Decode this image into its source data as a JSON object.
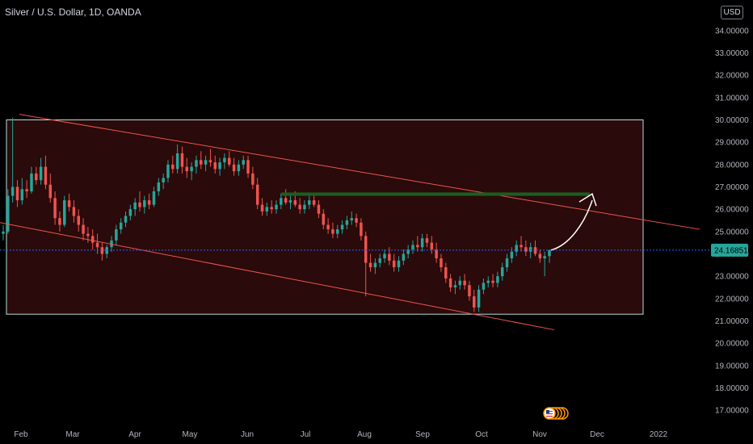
{
  "header": {
    "symbol": "Silver / U.S. Dollar, 1D, OANDA",
    "currency": "USD"
  },
  "colors": {
    "background": "#000000",
    "up": "#26a69a",
    "down": "#ef5350",
    "box_stroke": "#b2dfdb",
    "box_fill": "#2a0a0a",
    "channel": "#ef5350",
    "resistance": "#1b5e20",
    "projection": "#ffffff",
    "last_price_bg": "#26a69a",
    "last_price_line": "#2962ff"
  },
  "chart_data": {
    "type": "candlestick",
    "instrument": "Silver / U.S. Dollar",
    "timeframe": "1D",
    "source": "OANDA",
    "x_tick_labels": [
      "Feb",
      "Mar",
      "Apr",
      "May",
      "Jun",
      "Jul",
      "Aug",
      "Sep",
      "Oct",
      "Nov",
      "Dec",
      "2022"
    ],
    "y_tick_labels": [
      "34.00000",
      "33.00000",
      "32.00000",
      "31.00000",
      "30.00000",
      "29.00000",
      "28.00000",
      "27.00000",
      "26.00000",
      "25.00000",
      "24.00000",
      "23.00000",
      "22.00000",
      "21.00000",
      "20.00000",
      "19.00000",
      "18.00000",
      "17.00000"
    ],
    "y_range": [
      16.5,
      34.5
    ],
    "last_price": "24.16851",
    "last_price_value": 24.16851,
    "grid": false,
    "candles": [
      [
        24.9,
        25.3,
        24.6,
        25.0
      ],
      [
        25.0,
        26.9,
        24.9,
        26.6
      ],
      [
        26.6,
        30.1,
        26.3,
        27.0
      ],
      [
        27.0,
        27.3,
        26.1,
        26.4
      ],
      [
        26.4,
        27.4,
        26.2,
        26.9
      ],
      [
        26.9,
        27.3,
        26.5,
        26.8
      ],
      [
        26.8,
        27.9,
        26.7,
        27.6
      ],
      [
        27.6,
        27.9,
        27.1,
        27.3
      ],
      [
        27.3,
        28.3,
        27.1,
        27.9
      ],
      [
        27.9,
        28.4,
        26.9,
        27.1
      ],
      [
        27.1,
        27.6,
        26.3,
        26.5
      ],
      [
        26.5,
        26.8,
        25.3,
        25.6
      ],
      [
        25.6,
        25.9,
        25.0,
        25.3
      ],
      [
        25.3,
        26.6,
        25.2,
        26.4
      ],
      [
        26.4,
        26.7,
        25.9,
        26.1
      ],
      [
        26.1,
        26.4,
        25.4,
        25.7
      ],
      [
        25.7,
        26.0,
        25.0,
        25.3
      ],
      [
        25.3,
        25.6,
        24.6,
        24.9
      ],
      [
        24.9,
        25.2,
        24.5,
        24.8
      ],
      [
        24.8,
        25.1,
        24.2,
        24.5
      ],
      [
        24.5,
        24.9,
        24.0,
        24.3
      ],
      [
        24.3,
        24.5,
        23.7,
        24.0
      ],
      [
        24.0,
        24.4,
        23.8,
        24.3
      ],
      [
        24.3,
        24.8,
        24.1,
        24.6
      ],
      [
        24.6,
        25.3,
        24.4,
        25.1
      ],
      [
        25.1,
        25.6,
        24.9,
        25.4
      ],
      [
        25.4,
        25.9,
        25.2,
        25.7
      ],
      [
        25.7,
        26.2,
        25.5,
        26.0
      ],
      [
        26.0,
        26.5,
        25.7,
        26.3
      ],
      [
        26.3,
        26.8,
        25.9,
        26.1
      ],
      [
        26.1,
        26.6,
        25.8,
        26.4
      ],
      [
        26.4,
        26.7,
        26.0,
        26.2
      ],
      [
        26.2,
        27.0,
        26.1,
        26.8
      ],
      [
        26.8,
        27.4,
        26.6,
        27.2
      ],
      [
        27.2,
        27.6,
        26.9,
        27.4
      ],
      [
        27.4,
        28.2,
        27.2,
        28.0
      ],
      [
        28.0,
        28.4,
        27.6,
        27.8
      ],
      [
        27.8,
        28.9,
        27.6,
        28.5
      ],
      [
        28.5,
        28.8,
        27.6,
        27.9
      ],
      [
        27.9,
        28.3,
        27.4,
        27.7
      ],
      [
        27.7,
        28.1,
        27.3,
        27.9
      ],
      [
        27.9,
        28.4,
        27.6,
        28.2
      ],
      [
        28.2,
        28.6,
        27.8,
        28.0
      ],
      [
        28.0,
        28.4,
        27.7,
        28.2
      ],
      [
        28.2,
        28.7,
        27.9,
        28.1
      ],
      [
        28.1,
        28.4,
        27.6,
        27.8
      ],
      [
        27.8,
        28.3,
        27.5,
        28.1
      ],
      [
        28.1,
        28.5,
        27.8,
        28.3
      ],
      [
        28.3,
        28.6,
        27.9,
        28.0
      ],
      [
        28.0,
        28.3,
        27.5,
        27.7
      ],
      [
        27.7,
        28.2,
        27.5,
        28.0
      ],
      [
        28.0,
        28.4,
        27.8,
        28.2
      ],
      [
        28.2,
        28.4,
        27.4,
        27.6
      ],
      [
        27.6,
        27.9,
        26.9,
        27.1
      ],
      [
        27.1,
        27.4,
        26.0,
        26.2
      ],
      [
        26.2,
        26.5,
        25.7,
        25.9
      ],
      [
        25.9,
        26.3,
        25.7,
        26.1
      ],
      [
        26.1,
        26.4,
        25.8,
        26.0
      ],
      [
        26.0,
        26.4,
        25.8,
        26.2
      ],
      [
        26.2,
        26.7,
        26.0,
        26.5
      ],
      [
        26.5,
        26.9,
        26.2,
        26.3
      ],
      [
        26.3,
        26.6,
        26.0,
        26.4
      ],
      [
        26.4,
        26.8,
        26.1,
        26.2
      ],
      [
        26.2,
        26.5,
        25.8,
        26.0
      ],
      [
        26.0,
        26.4,
        25.8,
        26.2
      ],
      [
        26.2,
        26.6,
        26.0,
        26.4
      ],
      [
        26.4,
        26.7,
        26.1,
        26.2
      ],
      [
        26.2,
        26.4,
        25.6,
        25.8
      ],
      [
        25.8,
        26.0,
        25.1,
        25.3
      ],
      [
        25.3,
        25.6,
        24.9,
        25.1
      ],
      [
        25.1,
        25.4,
        24.7,
        24.9
      ],
      [
        24.9,
        25.3,
        24.7,
        25.1
      ],
      [
        25.1,
        25.5,
        24.9,
        25.3
      ],
      [
        25.3,
        25.7,
        25.1,
        25.5
      ],
      [
        25.5,
        25.9,
        25.3,
        25.6
      ],
      [
        25.6,
        25.8,
        25.2,
        25.4
      ],
      [
        25.4,
        25.6,
        24.6,
        24.8
      ],
      [
        24.8,
        25.0,
        22.1,
        23.6
      ],
      [
        23.6,
        24.0,
        23.2,
        23.4
      ],
      [
        23.4,
        23.8,
        23.1,
        23.6
      ],
      [
        23.6,
        24.0,
        23.4,
        23.8
      ],
      [
        23.8,
        24.2,
        23.6,
        24.0
      ],
      [
        24.0,
        24.3,
        23.5,
        23.7
      ],
      [
        23.7,
        24.0,
        23.2,
        23.4
      ],
      [
        23.4,
        23.9,
        23.2,
        23.7
      ],
      [
        23.7,
        24.2,
        23.5,
        24.0
      ],
      [
        24.0,
        24.4,
        23.8,
        24.2
      ],
      [
        24.2,
        24.6,
        24.0,
        24.4
      ],
      [
        24.4,
        24.8,
        24.1,
        24.3
      ],
      [
        24.3,
        24.9,
        24.1,
        24.7
      ],
      [
        24.7,
        24.9,
        24.3,
        24.5
      ],
      [
        24.5,
        24.8,
        24.0,
        24.2
      ],
      [
        24.2,
        24.5,
        23.6,
        23.8
      ],
      [
        23.8,
        24.0,
        23.2,
        23.4
      ],
      [
        23.4,
        23.6,
        22.7,
        22.9
      ],
      [
        22.9,
        23.1,
        22.3,
        22.5
      ],
      [
        22.5,
        22.8,
        22.2,
        22.6
      ],
      [
        22.6,
        23.0,
        22.4,
        22.8
      ],
      [
        22.8,
        23.1,
        22.4,
        22.6
      ],
      [
        22.6,
        22.8,
        21.9,
        22.1
      ],
      [
        22.1,
        22.4,
        21.4,
        21.6
      ],
      [
        21.6,
        22.6,
        21.4,
        22.4
      ],
      [
        22.4,
        22.9,
        22.2,
        22.7
      ],
      [
        22.7,
        23.0,
        22.5,
        22.8
      ],
      [
        22.8,
        23.1,
        22.5,
        22.7
      ],
      [
        22.7,
        23.2,
        22.5,
        23.0
      ],
      [
        23.0,
        23.6,
        22.8,
        23.4
      ],
      [
        23.4,
        24.0,
        23.2,
        23.8
      ],
      [
        23.8,
        24.3,
        23.6,
        24.1
      ],
      [
        24.1,
        24.6,
        23.9,
        24.4
      ],
      [
        24.4,
        24.8,
        24.1,
        24.3
      ],
      [
        24.3,
        24.6,
        23.9,
        24.1
      ],
      [
        24.1,
        24.5,
        23.8,
        24.3
      ],
      [
        24.3,
        24.6,
        23.9,
        24.0
      ],
      [
        24.0,
        24.2,
        23.6,
        23.8
      ],
      [
        23.8,
        24.1,
        23.0,
        23.9
      ],
      [
        23.9,
        24.2,
        23.6,
        24.17
      ]
    ],
    "drawings": {
      "range_box": {
        "price_top": 30.0,
        "price_bottom": 21.3
      },
      "channel_upper": {
        "p1": 30.25,
        "p2": 25.1
      },
      "channel_lower": {
        "p1": 25.4,
        "p2": 20.6
      },
      "resistance_zone": {
        "price_top": 26.75,
        "price_bottom": 26.6
      },
      "projection_target": 26.4
    }
  }
}
